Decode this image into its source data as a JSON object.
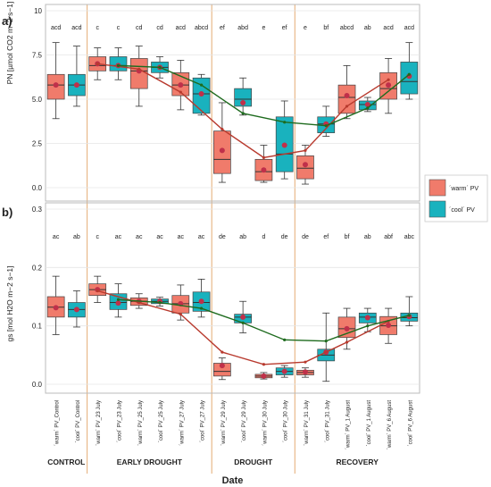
{
  "panel_labels": [
    "a)",
    "b)"
  ],
  "x_axis_title": "Date",
  "phases": [
    "CONTROL",
    "EARLY DROUGHT",
    "DROUGHT",
    "RECOVERY"
  ],
  "legend": [
    {
      "label": "´warm´ PV",
      "color": "#F07B6B"
    },
    {
      "label": "´cool´ PV",
      "color": "#19B2BE"
    }
  ],
  "colors": {
    "warm_box": "#F07B6B",
    "cool_box": "#19B2BE",
    "warm_line": "#B83A2E",
    "cool_line": "#1E6B1E",
    "mean_dot": "#C0304A",
    "phase_divider": "#E8B98A"
  },
  "chart_data": [
    {
      "type": "box",
      "panel": "a)",
      "ylabel": "PN [µmol CO2 m−2 s−1]",
      "ylim": [
        0,
        10
      ],
      "yticks": [
        "0.0",
        "2.5",
        "5.0",
        "7.5",
        "10"
      ],
      "categories": [
        "´warm´ PV_Control",
        "´cool´ PV_Control",
        "´warm´ PV_23 July",
        "´cool´ PV_23 July",
        "´warm´ PV_25 July",
        "´cool´ PV_25 July",
        "´warm´ PV_27 July",
        "´cool´ PV_27 July",
        "´warm´ PV_29 July",
        "´cool´ PV_29 July",
        "´warm´ PV_30 July",
        "´cool´ PV_30 July",
        "´warm´ PV_31 July",
        "´cool´ PV_31 July",
        "´warm´ PV_1 August",
        "´cool´ PV_1 August",
        "´warm´ PV_6 August",
        "´cool´ PV_6 August"
      ],
      "letters": [
        "acd",
        "acd",
        "c",
        "c",
        "cd",
        "cd",
        "acd",
        "abcd",
        "ef",
        "abd",
        "e",
        "ef",
        "e",
        "bf",
        "abcd",
        "ab",
        "acd",
        "acd"
      ],
      "boxes": [
        {
          "min": 3.9,
          "q1": 5.0,
          "median": 5.8,
          "q3": 6.4,
          "max": 8.2,
          "mean": 5.8
        },
        {
          "min": 4.6,
          "q1": 5.2,
          "median": 5.8,
          "q3": 6.4,
          "max": 8.0,
          "mean": 5.8
        },
        {
          "min": 6.1,
          "q1": 6.6,
          "median": 6.9,
          "q3": 7.4,
          "max": 7.9,
          "mean": 7.0
        },
        {
          "min": 6.1,
          "q1": 6.6,
          "median": 6.9,
          "q3": 7.4,
          "max": 7.9,
          "mean": 6.9
        },
        {
          "min": 4.6,
          "q1": 5.6,
          "median": 6.6,
          "q3": 7.3,
          "max": 8.0,
          "mean": 6.6
        },
        {
          "min": 6.2,
          "q1": 6.5,
          "median": 6.8,
          "q3": 7.1,
          "max": 7.4,
          "mean": 6.8
        },
        {
          "min": 4.4,
          "q1": 5.2,
          "median": 5.8,
          "q3": 6.5,
          "max": 7.2,
          "mean": 5.8
        },
        {
          "min": 4.1,
          "q1": 4.2,
          "median": 5.3,
          "q3": 6.2,
          "max": 6.4,
          "mean": 5.3
        },
        {
          "min": 0.3,
          "q1": 0.8,
          "median": 1.6,
          "q3": 3.2,
          "max": 4.8,
          "mean": 2.1
        },
        {
          "min": 4.1,
          "q1": 4.6,
          "median": 5.0,
          "q3": 5.6,
          "max": 6.2,
          "mean": 4.8
        },
        {
          "min": 0.3,
          "q1": 0.4,
          "median": 0.9,
          "q3": 1.6,
          "max": 2.4,
          "mean": 1.0
        },
        {
          "min": 0.5,
          "q1": 0.9,
          "median": 1.9,
          "q3": 4.0,
          "max": 4.9,
          "mean": 2.4
        },
        {
          "min": 0.2,
          "q1": 0.5,
          "median": 1.1,
          "q3": 1.8,
          "max": 2.4,
          "mean": 1.3
        },
        {
          "min": 2.9,
          "q1": 3.1,
          "median": 3.6,
          "q3": 4.0,
          "max": 4.6,
          "mean": 3.6
        },
        {
          "min": 3.9,
          "q1": 4.2,
          "median": 5.1,
          "q3": 5.8,
          "max": 6.9,
          "mean": 5.2
        },
        {
          "min": 4.3,
          "q1": 4.4,
          "median": 4.7,
          "q3": 4.9,
          "max": 5.1,
          "mean": 4.7
        },
        {
          "min": 4.2,
          "q1": 5.0,
          "median": 5.6,
          "q3": 6.5,
          "max": 7.3,
          "mean": 5.8
        },
        {
          "min": 5.0,
          "q1": 5.3,
          "median": 6.0,
          "q3": 7.1,
          "max": 8.2,
          "mean": 6.3
        }
      ],
      "series": [
        {
          "x_points": [
            "´warm´ PV_23 July",
            "´warm´ PV_25 July",
            "´warm´ PV_27 July",
            "´warm´ PV_29 July",
            "´warm´ PV_30 July",
            "´warm´ PV_31 July",
            "´warm´ PV_1 August",
            "´warm´ PV_6 August"
          ],
          "values": [
            7.0,
            6.7,
            5.4,
            3.3,
            1.7,
            2.1,
            4.6,
            6.1
          ]
        },
        {
          "x_points": [
            "´cool´ PV_23 July",
            "´cool´ PV_25 July",
            "´cool´ PV_27 July",
            "´cool´ PV_29 July",
            "´cool´ PV_30 July",
            "´cool´ PV_31 July",
            "´cool´ PV_1 August",
            "´cool´ PV_6 August"
          ],
          "values": [
            6.9,
            6.8,
            5.8,
            4.2,
            3.7,
            3.5,
            4.5,
            6.4
          ]
        }
      ]
    },
    {
      "type": "box",
      "panel": "b)",
      "ylabel": "gs [mol H2O m−2 s−1]",
      "ylim": [
        0,
        0.3
      ],
      "yticks": [
        "0.0",
        "0.1",
        "0.2",
        "0.3"
      ],
      "categories": [
        "´warm´ PV_Control",
        "´cool´ PV_Control",
        "´warm´ PV_23 July",
        "´cool´ PV_23 July",
        "´warm´ PV_25 July",
        "´cool´ PV_25 July",
        "´warm´ PV_27 July",
        "´cool´ PV_27 July",
        "´warm´ PV_29 July",
        "´cool´ PV_29 July",
        "´warm´ PV_30 July",
        "´cool´ PV_30 July",
        "´warm´ PV_31 July",
        "´cool´ PV_31 July",
        "´warm´ PV_1 August",
        "´cool´ PV_1 August",
        "´warm´ PV_6 August",
        "´cool´ PV_6 August"
      ],
      "letters": [
        "ac",
        "ab",
        "c",
        "ac",
        "ac",
        "ac",
        "ac",
        "ac",
        "de",
        "ab",
        "d",
        "de",
        "de",
        "ef",
        "bf",
        "ab",
        "abf",
        "abc"
      ],
      "boxes": [
        {
          "min": 0.085,
          "q1": 0.115,
          "median": 0.132,
          "q3": 0.15,
          "max": 0.185,
          "mean": 0.131
        },
        {
          "min": 0.098,
          "q1": 0.115,
          "median": 0.128,
          "q3": 0.14,
          "max": 0.16,
          "mean": 0.128
        },
        {
          "min": 0.14,
          "q1": 0.152,
          "median": 0.162,
          "q3": 0.172,
          "max": 0.185,
          "mean": 0.162
        },
        {
          "min": 0.115,
          "q1": 0.128,
          "median": 0.14,
          "q3": 0.155,
          "max": 0.172,
          "mean": 0.139
        },
        {
          "min": 0.13,
          "q1": 0.135,
          "median": 0.142,
          "q3": 0.148,
          "max": 0.155,
          "mean": 0.142
        },
        {
          "min": 0.134,
          "q1": 0.138,
          "median": 0.142,
          "q3": 0.146,
          "max": 0.149,
          "mean": 0.142
        },
        {
          "min": 0.11,
          "q1": 0.122,
          "median": 0.138,
          "q3": 0.152,
          "max": 0.17,
          "mean": 0.138
        },
        {
          "min": 0.115,
          "q1": 0.125,
          "median": 0.14,
          "q3": 0.158,
          "max": 0.18,
          "mean": 0.142
        },
        {
          "min": 0.008,
          "q1": 0.014,
          "median": 0.022,
          "q3": 0.036,
          "max": 0.045,
          "mean": 0.032
        },
        {
          "min": 0.088,
          "q1": 0.105,
          "median": 0.115,
          "q3": 0.12,
          "max": 0.142,
          "mean": 0.115
        },
        {
          "min": 0.009,
          "q1": 0.011,
          "median": 0.014,
          "q3": 0.017,
          "max": 0.02,
          "mean": 0.014
        },
        {
          "min": 0.012,
          "q1": 0.016,
          "median": 0.022,
          "q3": 0.028,
          "max": 0.032,
          "mean": 0.022
        },
        {
          "min": 0.012,
          "q1": 0.016,
          "median": 0.02,
          "q3": 0.024,
          "max": 0.028,
          "mean": 0.021
        },
        {
          "min": 0.005,
          "q1": 0.04,
          "median": 0.05,
          "q3": 0.06,
          "max": 0.122,
          "mean": 0.055
        },
        {
          "min": 0.06,
          "q1": 0.08,
          "median": 0.095,
          "q3": 0.115,
          "max": 0.13,
          "mean": 0.095
        },
        {
          "min": 0.09,
          "q1": 0.105,
          "median": 0.115,
          "q3": 0.122,
          "max": 0.13,
          "mean": 0.114
        },
        {
          "min": 0.07,
          "q1": 0.085,
          "median": 0.1,
          "q3": 0.116,
          "max": 0.13,
          "mean": 0.101
        },
        {
          "min": 0.1,
          "q1": 0.108,
          "median": 0.114,
          "q3": 0.122,
          "max": 0.15,
          "mean": 0.116
        }
      ],
      "series": [
        {
          "x_points": [
            "´warm´ PV_23 July",
            "´warm´ PV_25 July",
            "´warm´ PV_27 July",
            "´warm´ PV_29 July",
            "´warm´ PV_30 July",
            "´warm´ PV_31 July",
            "´warm´ PV_1 August",
            "´warm´ PV_6 August"
          ],
          "values": [
            0.16,
            0.14,
            0.12,
            0.055,
            0.034,
            0.038,
            0.072,
            0.108
          ]
        },
        {
          "x_points": [
            "´cool´ PV_23 July",
            "´cool´ PV_25 July",
            "´cool´ PV_27 July",
            "´cool´ PV_29 July",
            "´cool´ PV_30 July",
            "´cool´ PV_31 July",
            "´cool´ PV_1 August",
            "´cool´ PV_6 August"
          ],
          "values": [
            0.145,
            0.14,
            0.13,
            0.105,
            0.076,
            0.074,
            0.1,
            0.118
          ]
        }
      ]
    }
  ]
}
